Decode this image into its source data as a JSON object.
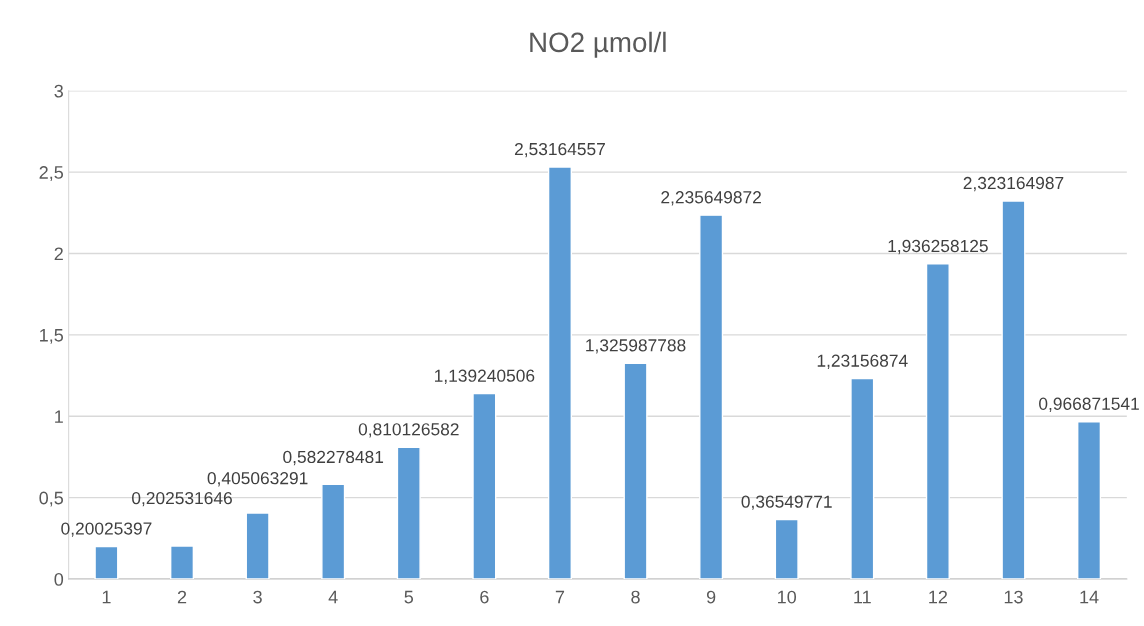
{
  "chart_data": {
    "type": "bar",
    "title": "NO2 µmol/l",
    "categories": [
      "1",
      "2",
      "3",
      "4",
      "5",
      "6",
      "7",
      "8",
      "9",
      "10",
      "11",
      "12",
      "13",
      "14"
    ],
    "values": [
      0.20025397,
      0.202531646,
      0.405063291,
      0.582278481,
      0.810126582,
      1.139240506,
      2.53164557,
      1.325987788,
      2.235649872,
      0.36549771,
      1.23156874,
      1.936258125,
      2.323164987,
      0.966871541
    ],
    "value_labels": [
      "0,20025397",
      "0,202531646",
      "0,405063291",
      "0,582278481",
      "0,810126582",
      "1,139240506",
      "2,53164557",
      "1,325987788",
      "2,235649872",
      "0,36549771",
      "1,23156874",
      "1,936258125",
      "2,323164987",
      "0,966871541"
    ],
    "color": "#5b9bd5",
    "ylim": [
      0,
      3
    ],
    "yticks": [
      0,
      {
        "value": 0.5,
        "label": "0,5"
      },
      1,
      {
        "value": 1.5,
        "label": "1,5"
      },
      2,
      {
        "value": 2.5,
        "label": "2,5"
      },
      3
    ],
    "grid": "y"
  }
}
